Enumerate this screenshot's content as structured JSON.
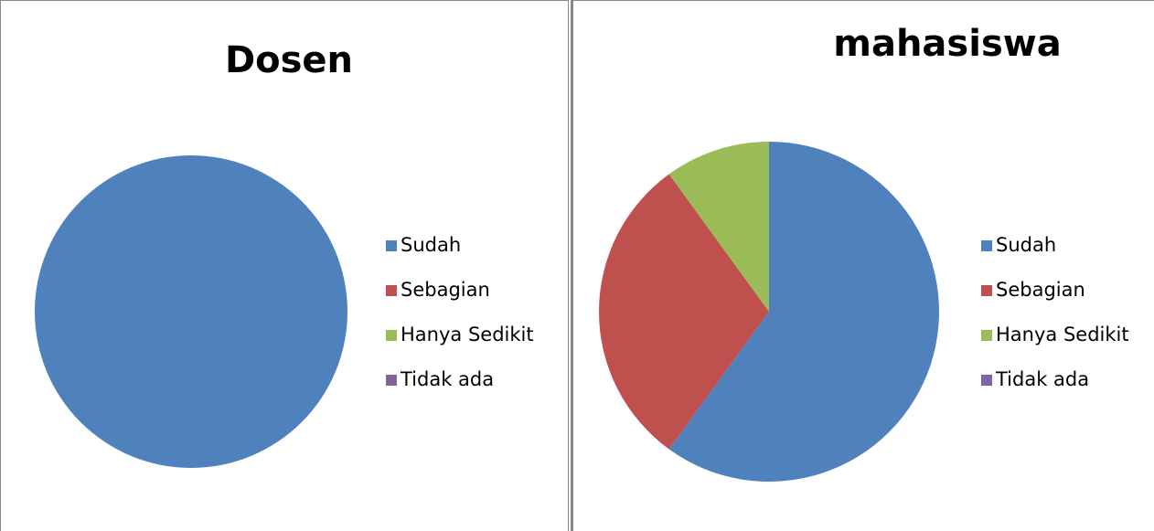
{
  "chart_data": [
    {
      "type": "pie",
      "title": "Dosen",
      "categories": [
        "Sudah",
        "Sebagian",
        "Hanya Sedikit",
        "Tidak ada"
      ],
      "values": [
        100,
        0,
        0,
        0
      ],
      "colors": [
        "#4f81bd",
        "#c0504d",
        "#9bbb59",
        "#8064a2"
      ],
      "legend": "right"
    },
    {
      "type": "pie",
      "title": "mahasiswa",
      "categories": [
        "Sudah",
        "Sebagian",
        "Hanya Sedikit",
        "Tidak ada"
      ],
      "values": [
        60,
        30,
        10,
        0
      ],
      "colors": [
        "#4f81bd",
        "#c0504d",
        "#9bbb59",
        "#8064a2"
      ],
      "legend": "right"
    }
  ]
}
